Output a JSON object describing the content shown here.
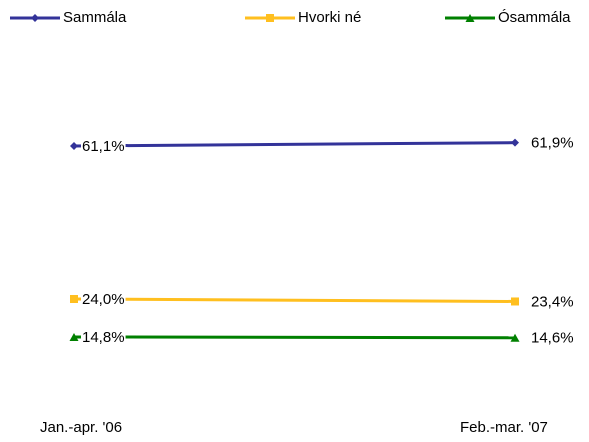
{
  "chart_data": {
    "type": "line",
    "categories": [
      "Jan.-apr. '06",
      "Feb.-mar. '07"
    ],
    "series": [
      {
        "name": "Sammála",
        "color": "#333399",
        "marker": "diamond",
        "values": [
          61.1,
          61.9
        ],
        "value_labels": [
          "61,1%",
          "61,9%"
        ]
      },
      {
        "name": "Hvorki né",
        "color": "#ffbf1f",
        "marker": "square",
        "values": [
          24.0,
          23.4
        ],
        "value_labels": [
          "24,0%",
          "23,4%"
        ]
      },
      {
        "name": "Ósammála",
        "color": "#008000",
        "marker": "triangle",
        "values": [
          14.8,
          14.6
        ],
        "value_labels": [
          "14,8%",
          "14,6%"
        ]
      }
    ],
    "ylim": [
      0,
      80
    ],
    "legend": "top"
  }
}
